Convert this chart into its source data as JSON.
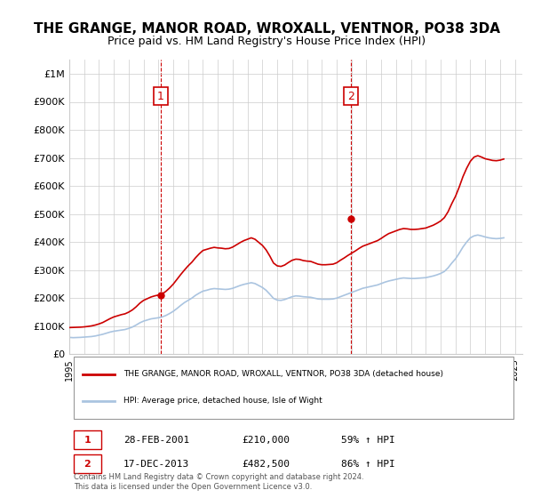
{
  "title": "THE GRANGE, MANOR ROAD, WROXALL, VENTNOR, PO38 3DA",
  "subtitle": "Price paid vs. HM Land Registry's House Price Index (HPI)",
  "title_fontsize": 11,
  "subtitle_fontsize": 9,
  "ylabel_ticks": [
    "£0",
    "£100K",
    "£200K",
    "£300K",
    "£400K",
    "£500K",
    "£600K",
    "£700K",
    "£800K",
    "£900K",
    "£1M"
  ],
  "ytick_values": [
    0,
    100000,
    200000,
    300000,
    400000,
    500000,
    600000,
    700000,
    800000,
    900000,
    1000000
  ],
  "ylim": [
    0,
    1050000
  ],
  "xlim_start": 1995.0,
  "xlim_end": 2025.5,
  "background_color": "#ffffff",
  "grid_color": "#cccccc",
  "hpi_color": "#aac4e0",
  "property_color": "#cc0000",
  "sale1_x": 2001.162,
  "sale1_y": 210000,
  "sale2_x": 2013.958,
  "sale2_y": 482500,
  "legend_property": "THE GRANGE, MANOR ROAD, WROXALL, VENTNOR, PO38 3DA (detached house)",
  "legend_hpi": "HPI: Average price, detached house, Isle of Wight",
  "annotation1_label": "1",
  "annotation2_label": "2",
  "table_row1": [
    "1",
    "28-FEB-2001",
    "£210,000",
    "59% ↑ HPI"
  ],
  "table_row2": [
    "2",
    "17-DEC-2013",
    "£482,500",
    "86% ↑ HPI"
  ],
  "footer_line1": "Contains HM Land Registry data © Crown copyright and database right 2024.",
  "footer_line2": "This data is licensed under the Open Government Licence v3.0.",
  "hpi_data_x": [
    1995.0,
    1995.25,
    1995.5,
    1995.75,
    1996.0,
    1996.25,
    1996.5,
    1996.75,
    1997.0,
    1997.25,
    1997.5,
    1997.75,
    1998.0,
    1998.25,
    1998.5,
    1998.75,
    1999.0,
    1999.25,
    1999.5,
    1999.75,
    2000.0,
    2000.25,
    2000.5,
    2000.75,
    2001.0,
    2001.25,
    2001.5,
    2001.75,
    2002.0,
    2002.25,
    2002.5,
    2002.75,
    2003.0,
    2003.25,
    2003.5,
    2003.75,
    2004.0,
    2004.25,
    2004.5,
    2004.75,
    2005.0,
    2005.25,
    2005.5,
    2005.75,
    2006.0,
    2006.25,
    2006.5,
    2006.75,
    2007.0,
    2007.25,
    2007.5,
    2007.75,
    2008.0,
    2008.25,
    2008.5,
    2008.75,
    2009.0,
    2009.25,
    2009.5,
    2009.75,
    2010.0,
    2010.25,
    2010.5,
    2010.75,
    2011.0,
    2011.25,
    2011.5,
    2011.75,
    2012.0,
    2012.25,
    2012.5,
    2012.75,
    2013.0,
    2013.25,
    2013.5,
    2013.75,
    2014.0,
    2014.25,
    2014.5,
    2014.75,
    2015.0,
    2015.25,
    2015.5,
    2015.75,
    2016.0,
    2016.25,
    2016.5,
    2016.75,
    2017.0,
    2017.25,
    2017.5,
    2017.75,
    2018.0,
    2018.25,
    2018.5,
    2018.75,
    2019.0,
    2019.25,
    2019.5,
    2019.75,
    2020.0,
    2020.25,
    2020.5,
    2020.75,
    2021.0,
    2021.25,
    2021.5,
    2021.75,
    2022.0,
    2022.25,
    2022.5,
    2022.75,
    2023.0,
    2023.25,
    2023.5,
    2023.75,
    2024.0,
    2024.25
  ],
  "hpi_data_y": [
    60000,
    59000,
    59500,
    60000,
    61000,
    62000,
    63000,
    65000,
    68000,
    71000,
    75000,
    79000,
    82000,
    84000,
    86000,
    88000,
    92000,
    97000,
    104000,
    112000,
    118000,
    122000,
    126000,
    128000,
    130000,
    133000,
    138000,
    145000,
    153000,
    163000,
    174000,
    184000,
    192000,
    200000,
    210000,
    218000,
    225000,
    228000,
    232000,
    234000,
    233000,
    232000,
    231000,
    232000,
    235000,
    240000,
    245000,
    249000,
    252000,
    255000,
    252000,
    245000,
    238000,
    228000,
    214000,
    199000,
    193000,
    192000,
    195000,
    200000,
    205000,
    208000,
    207000,
    205000,
    204000,
    203000,
    200000,
    197000,
    196000,
    196000,
    196000,
    197000,
    200000,
    205000,
    210000,
    215000,
    220000,
    225000,
    230000,
    235000,
    238000,
    241000,
    244000,
    247000,
    252000,
    257000,
    261000,
    264000,
    267000,
    270000,
    272000,
    271000,
    270000,
    270000,
    271000,
    272000,
    273000,
    276000,
    279000,
    283000,
    288000,
    295000,
    308000,
    325000,
    340000,
    360000,
    382000,
    400000,
    415000,
    422000,
    425000,
    422000,
    418000,
    415000,
    413000,
    412000,
    413000,
    415000
  ],
  "property_data_x": [
    1995.0,
    1995.25,
    1995.5,
    1995.75,
    1996.0,
    1996.25,
    1996.5,
    1996.75,
    1997.0,
    1997.25,
    1997.5,
    1997.75,
    1998.0,
    1998.25,
    1998.5,
    1998.75,
    1999.0,
    1999.25,
    1999.5,
    1999.75,
    2000.0,
    2000.25,
    2000.5,
    2000.75,
    2001.0,
    2001.25,
    2001.5,
    2001.75,
    2002.0,
    2002.25,
    2002.5,
    2002.75,
    2003.0,
    2003.25,
    2003.5,
    2003.75,
    2004.0,
    2004.25,
    2004.5,
    2004.75,
    2005.0,
    2005.25,
    2005.5,
    2005.75,
    2006.0,
    2006.25,
    2006.5,
    2006.75,
    2007.0,
    2007.25,
    2007.5,
    2007.75,
    2008.0,
    2008.25,
    2008.5,
    2008.75,
    2009.0,
    2009.25,
    2009.5,
    2009.75,
    2010.0,
    2010.25,
    2010.5,
    2010.75,
    2011.0,
    2011.25,
    2011.5,
    2011.75,
    2012.0,
    2012.25,
    2012.5,
    2012.75,
    2013.0,
    2013.25,
    2013.5,
    2013.75,
    2014.0,
    2014.25,
    2014.5,
    2014.75,
    2015.0,
    2015.25,
    2015.5,
    2015.75,
    2016.0,
    2016.25,
    2016.5,
    2016.75,
    2017.0,
    2017.25,
    2017.5,
    2017.75,
    2018.0,
    2018.25,
    2018.5,
    2018.75,
    2019.0,
    2019.25,
    2019.5,
    2019.75,
    2020.0,
    2020.25,
    2020.5,
    2020.75,
    2021.0,
    2021.25,
    2021.5,
    2021.75,
    2022.0,
    2022.25,
    2022.5,
    2022.75,
    2023.0,
    2023.25,
    2023.5,
    2023.75,
    2024.0,
    2024.25
  ],
  "property_data_y": [
    95000,
    95500,
    96000,
    96500,
    97500,
    99000,
    101000,
    104000,
    108000,
    113000,
    120000,
    127000,
    133000,
    137000,
    141000,
    144000,
    150000,
    158000,
    169000,
    182000,
    192000,
    198000,
    204000,
    208000,
    211000,
    215000,
    224000,
    236000,
    250000,
    267000,
    284000,
    300000,
    315000,
    328000,
    344000,
    358000,
    370000,
    374000,
    378000,
    381000,
    379000,
    378000,
    376000,
    377000,
    382000,
    390000,
    398000,
    405000,
    410000,
    415000,
    410000,
    399000,
    388000,
    372000,
    350000,
    325000,
    315000,
    313000,
    318000,
    327000,
    335000,
    339000,
    338000,
    334000,
    332000,
    331000,
    326000,
    321000,
    319000,
    319000,
    320000,
    321000,
    326000,
    335000,
    343000,
    352000,
    360000,
    368000,
    377000,
    385000,
    390000,
    395000,
    400000,
    405000,
    413000,
    422000,
    430000,
    435000,
    440000,
    445000,
    448000,
    447000,
    445000,
    445000,
    446000,
    448000,
    450000,
    455000,
    460000,
    467000,
    475000,
    487000,
    508000,
    537000,
    563000,
    596000,
    633000,
    663000,
    688000,
    703000,
    708000,
    703000,
    697000,
    694000,
    691000,
    690000,
    692000,
    696000
  ],
  "xtick_years": [
    1995,
    1996,
    1997,
    1998,
    1999,
    2000,
    2001,
    2002,
    2003,
    2004,
    2005,
    2006,
    2007,
    2008,
    2009,
    2010,
    2011,
    2012,
    2013,
    2014,
    2015,
    2016,
    2017,
    2018,
    2019,
    2020,
    2021,
    2022,
    2023,
    2024,
    2025
  ]
}
